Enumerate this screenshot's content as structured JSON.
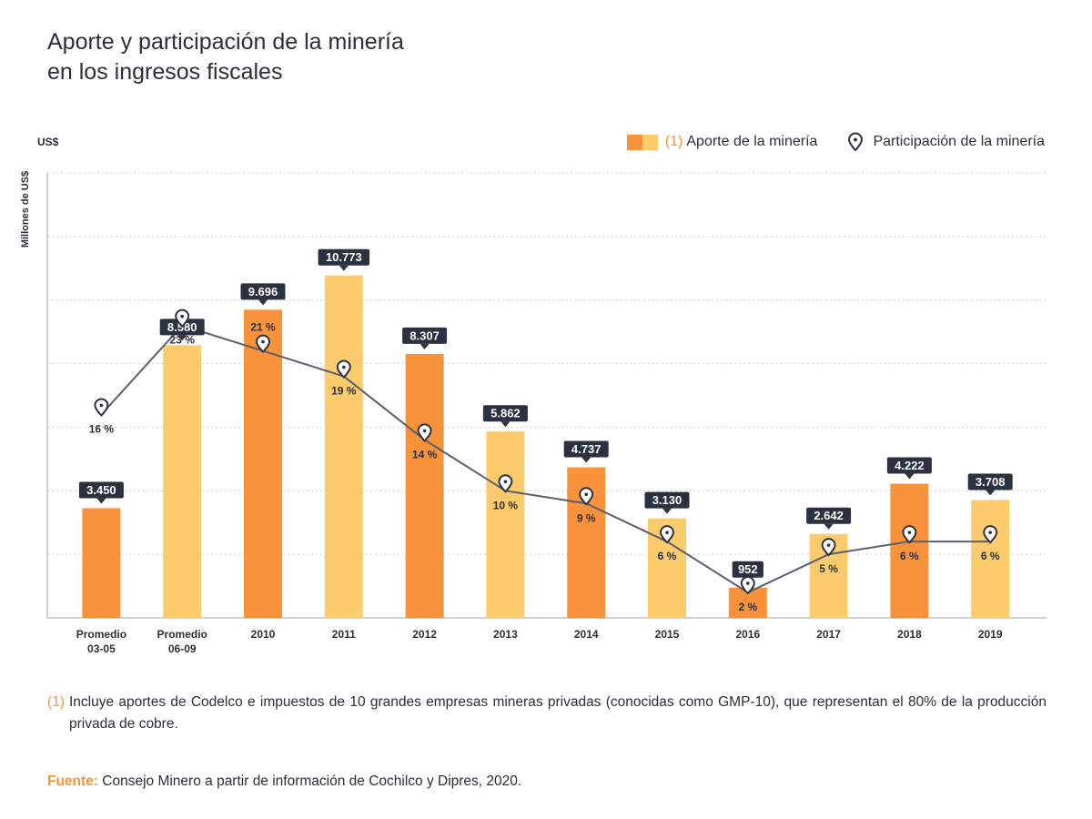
{
  "title_lines": [
    "Aporte y participación de la minería",
    "en los ingresos fiscales"
  ],
  "currency_label": "US$",
  "legend": {
    "num": "(1)",
    "bar_label": "Aporte de la minería",
    "line_label": "Participación de la minería"
  },
  "colors": {
    "orange": "#f8923b",
    "yellow": "#fbcb6c",
    "line": "#5a606d",
    "badge": "#2c3140",
    "accent": "#f29537"
  },
  "footnote": {
    "num": "(1)",
    "text": "Incluye aportes de Codelco e impuestos de 10 grandes empresas mineras privadas (conocidas como GMP-10), que representan el 80% de la producción privada de cobre."
  },
  "source": {
    "label": "Fuente:",
    "text": "Consejo Minero a partir de información de Cochilco y Dipres, 2020."
  },
  "chart_data": {
    "type": "bar",
    "ylabel": "Millones de US$",
    "categories": [
      [
        "Promedio",
        "03-05"
      ],
      [
        "Promedio",
        "06-09"
      ],
      [
        "2010"
      ],
      [
        "2011"
      ],
      [
        "2012"
      ],
      [
        "2013"
      ],
      [
        "2014"
      ],
      [
        "2015"
      ],
      [
        "2016"
      ],
      [
        "2017"
      ],
      [
        "2018"
      ],
      [
        "2019"
      ]
    ],
    "series": [
      {
        "name": "Aporte de la minería",
        "type": "bar",
        "values": [
          3450,
          8580,
          9696,
          10773,
          8307,
          5862,
          4737,
          3130,
          952,
          2642,
          4222,
          3708
        ],
        "value_labels": [
          "3.450",
          "8.580",
          "9.696",
          "10.773",
          "8.307",
          "5.862",
          "4.737",
          "3.130",
          "952",
          "2.642",
          "4.222",
          "3.708"
        ],
        "colors": [
          "orange",
          "yellow",
          "orange",
          "yellow",
          "orange",
          "yellow",
          "orange",
          "yellow",
          "orange",
          "yellow",
          "orange",
          "yellow"
        ]
      },
      {
        "name": "Participación de la minería",
        "type": "line",
        "unit": "%",
        "values": [
          16,
          23,
          21,
          19,
          14,
          10,
          9,
          6,
          2,
          5,
          6,
          6
        ],
        "value_labels": [
          "16 %",
          "23 %",
          "21 %",
          "19 %",
          "14 %",
          "10 %",
          "9 %",
          "6 %",
          "2 %",
          "5 %",
          "6 %",
          "6 %"
        ],
        "label_position": [
          "below",
          "below",
          "above",
          "below",
          "below",
          "below",
          "below",
          "below",
          "below",
          "below",
          "below",
          "below"
        ]
      }
    ],
    "ylim": [
      0,
      14000
    ],
    "y2lim": [
      0,
      35
    ],
    "grid": true,
    "legend_position": "top-right"
  }
}
